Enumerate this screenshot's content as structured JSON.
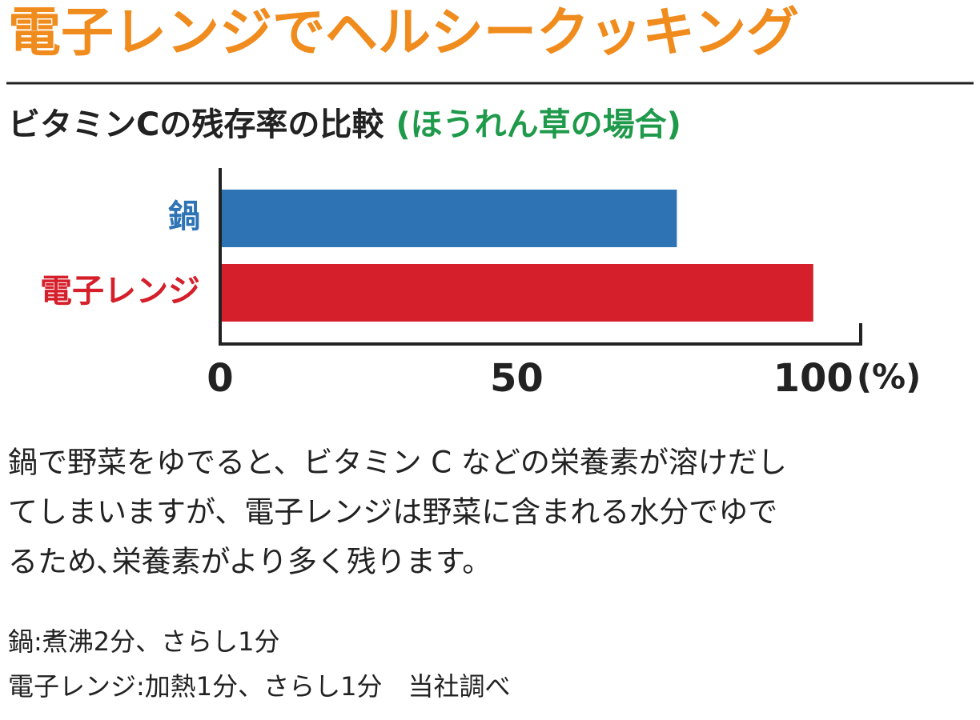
{
  "header": {
    "title": "電子レンジでヘルシークッキング"
  },
  "chart_data": {
    "type": "bar",
    "orientation": "horizontal",
    "title": "ビタミンCの残存率の比較",
    "subtitle": "(ほうれん草の場合)",
    "categories": [
      "鍋",
      "電子レンジ"
    ],
    "values": [
      77,
      100
    ],
    "colors": [
      "#2e74b5",
      "#d51f2a"
    ],
    "xlim": [
      0,
      108
    ],
    "xticks": [
      0,
      50,
      100
    ],
    "xlabel": "(%)"
  },
  "body": {
    "lines": [
      "鍋で野菜をゆでると、ビタミン C などの栄養素が溶けだし",
      "てしまいますが、電子レンジは野菜に含まれる水分でゆで",
      "るため､栄養素がより多く残ります。"
    ]
  },
  "notes": [
    "鍋:煮沸2分、さらし1分",
    "電子レンジ:加熱1分、さらし1分　当社調べ"
  ]
}
